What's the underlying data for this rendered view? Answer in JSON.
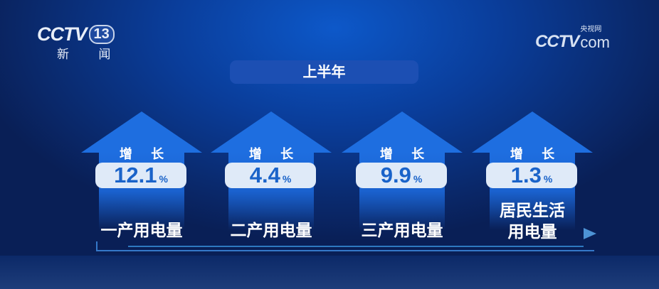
{
  "logos": {
    "left": {
      "brand": "CCTV",
      "channel": "13",
      "subtitle": "新 闻"
    },
    "right": {
      "brand": "CCTV",
      "cn": "央视网",
      "com": "com"
    }
  },
  "title": "上半年",
  "items": [
    {
      "grow": "增 长",
      "value": "12.1",
      "unit": "%",
      "label": "一产用电量"
    },
    {
      "grow": "增 长",
      "value": "4.4",
      "unit": "%",
      "label": "二产用电量"
    },
    {
      "grow": "增 长",
      "value": "9.9",
      "unit": "%",
      "label": "三产用电量"
    },
    {
      "grow": "增 长",
      "value": "1.3",
      "unit": "%",
      "label": "居民生活\n用电量",
      "label_lines": [
        "居民生活",
        "用电量"
      ]
    }
  ],
  "colors": {
    "arrow": "#1e6ee0",
    "value_text": "#1a63c9",
    "pill": "#dfeaf8",
    "background": "#0a2a6e"
  }
}
